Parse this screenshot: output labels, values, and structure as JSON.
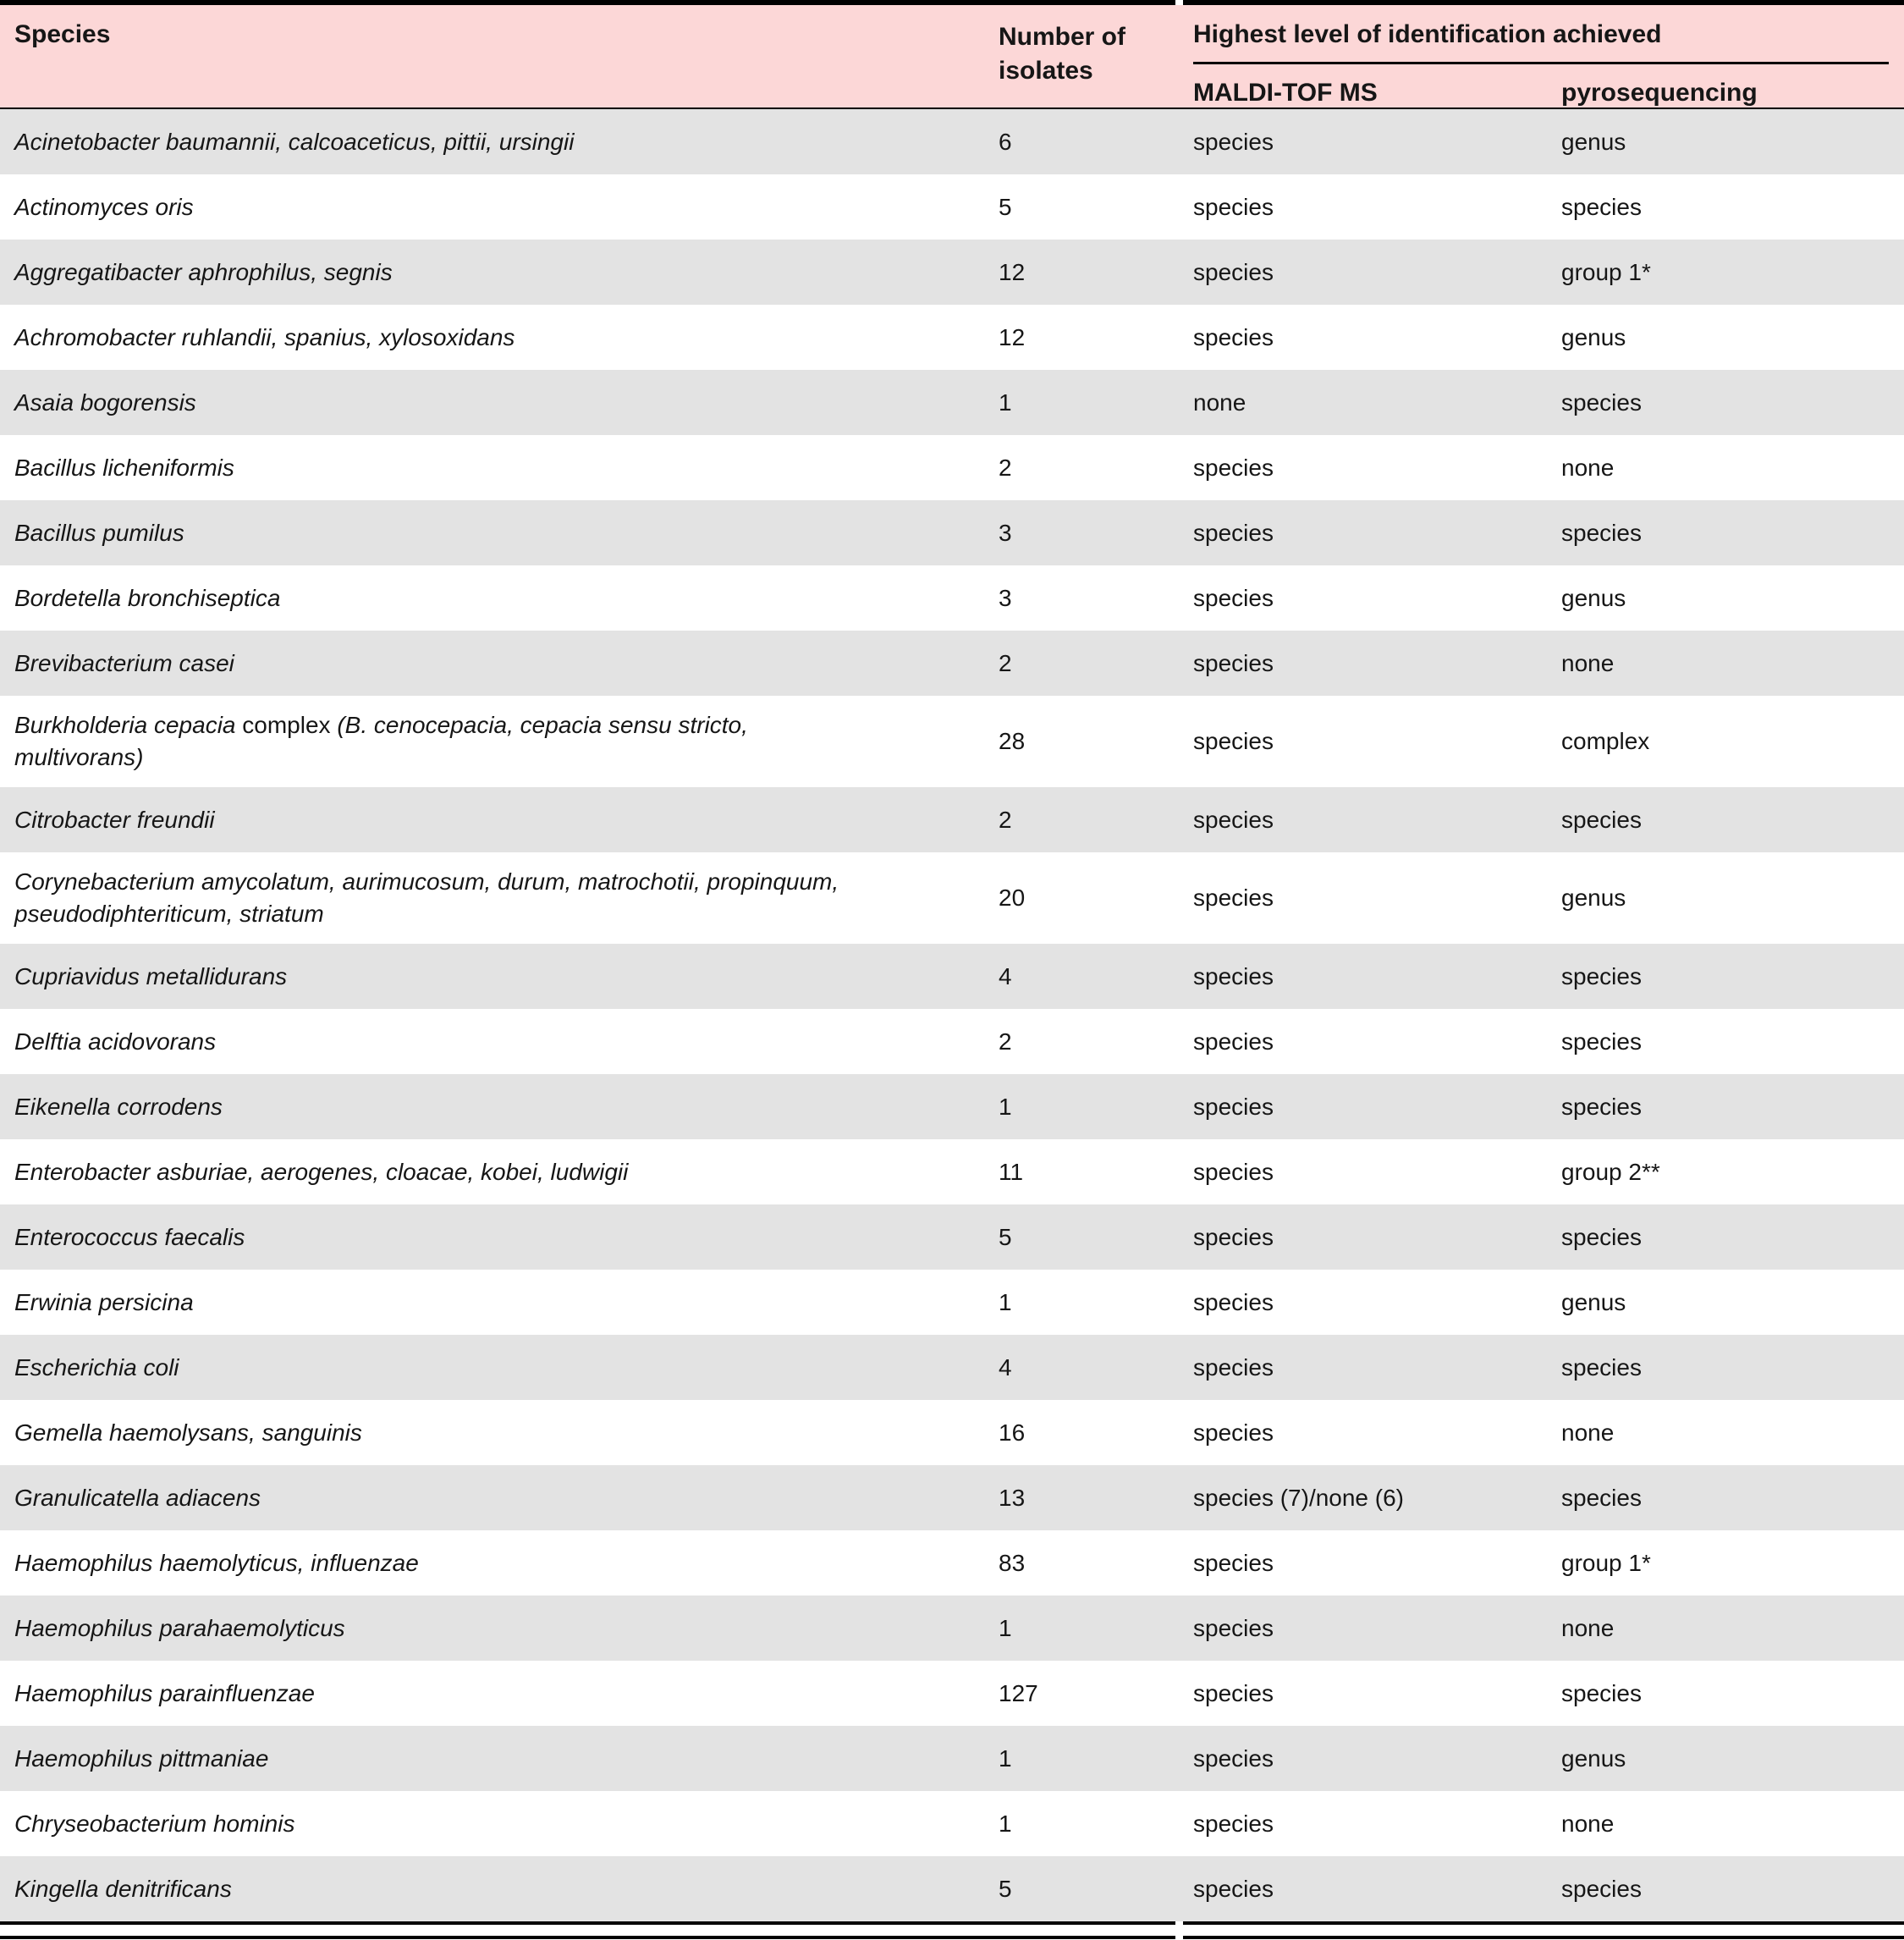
{
  "table": {
    "columns": {
      "species": "Species",
      "isolates": "Number of isolates",
      "group": "Highest level of identification achieved",
      "maldi": "MALDI-TOF MS",
      "pyro": "pyrosequencing"
    },
    "colors": {
      "header_bg": "#fcd7d7",
      "alt_row_bg": "#e3e3e3",
      "rule": "#000000"
    },
    "rows": [
      {
        "species": "Acinetobacter baumannii, calcoaceticus, pittii, ursingii",
        "isolates": "6",
        "maldi": "species",
        "pyro": "genus"
      },
      {
        "species": "Actinomyces oris",
        "isolates": "5",
        "maldi": "species",
        "pyro": "species"
      },
      {
        "species": "Aggregatibacter aphrophilus, segnis",
        "isolates": "12",
        "maldi": "species",
        "pyro": "group 1*"
      },
      {
        "species": "Achromobacter ruhlandii, spanius, xylosoxidans",
        "isolates": "12",
        "maldi": "species",
        "pyro": "genus"
      },
      {
        "species": "Asaia bogorensis",
        "isolates": "1",
        "maldi": "none",
        "pyro": "species"
      },
      {
        "species": "Bacillus licheniformis",
        "isolates": "2",
        "maldi": "species",
        "pyro": "none"
      },
      {
        "species": "Bacillus pumilus",
        "isolates": "3",
        "maldi": "species",
        "pyro": "species"
      },
      {
        "species": "Bordetella bronchiseptica",
        "isolates": "3",
        "maldi": "species",
        "pyro": "genus"
      },
      {
        "species": "Brevibacterium casei",
        "isolates": "2",
        "maldi": "species",
        "pyro": "none"
      },
      {
        "species": [
          {
            "text": "Burkholderia cepacia ",
            "italic": true
          },
          {
            "text": "complex ",
            "italic": false
          },
          {
            "text": "(B. cenocepacia, cepacia sensu stricto, multivorans)",
            "italic": true
          }
        ],
        "isolates": "28",
        "maldi": "species",
        "pyro": "complex"
      },
      {
        "species": "Citrobacter freundii",
        "isolates": "2",
        "maldi": "species",
        "pyro": "species"
      },
      {
        "species": "Corynebacterium amycolatum, aurimucosum, durum, matrochotii, propinquum, pseudodiphteriticum, striatum",
        "isolates": "20",
        "maldi": "species",
        "pyro": "genus"
      },
      {
        "species": "Cupriavidus metallidurans",
        "isolates": "4",
        "maldi": "species",
        "pyro": "species"
      },
      {
        "species": "Delftia acidovorans",
        "isolates": "2",
        "maldi": "species",
        "pyro": "species"
      },
      {
        "species": "Eikenella corrodens",
        "isolates": "1",
        "maldi": "species",
        "pyro": "species"
      },
      {
        "species": "Enterobacter asburiae, aerogenes, cloacae, kobei, ludwigii",
        "isolates": "11",
        "maldi": "species",
        "pyro": "group 2**"
      },
      {
        "species": "Enterococcus faecalis",
        "isolates": "5",
        "maldi": "species",
        "pyro": "species"
      },
      {
        "species": "Erwinia persicina",
        "isolates": "1",
        "maldi": "species",
        "pyro": "genus"
      },
      {
        "species": "Escherichia coli",
        "isolates": "4",
        "maldi": "species",
        "pyro": "species"
      },
      {
        "species": "Gemella haemolysans, sanguinis",
        "isolates": "16",
        "maldi": "species",
        "pyro": "none"
      },
      {
        "species": "Granulicatella adiacens",
        "isolates": "13",
        "maldi": "species (7)/none (6)",
        "pyro": "species"
      },
      {
        "species": "Haemophilus haemolyticus, influenzae",
        "isolates": "83",
        "maldi": "species",
        "pyro": "group 1*"
      },
      {
        "species": "Haemophilus parahaemolyticus",
        "isolates": "1",
        "maldi": "species",
        "pyro": "none"
      },
      {
        "species": "Haemophilus parainfluenzae",
        "isolates": "127",
        "maldi": "species",
        "pyro": "species"
      },
      {
        "species": "Haemophilus pittmaniae",
        "isolates": "1",
        "maldi": "species",
        "pyro": "genus"
      },
      {
        "species": "Chryseobacterium hominis",
        "isolates": "1",
        "maldi": "species",
        "pyro": "none"
      },
      {
        "species": "Kingella denitrificans",
        "isolates": "5",
        "maldi": "species",
        "pyro": "species"
      }
    ]
  }
}
